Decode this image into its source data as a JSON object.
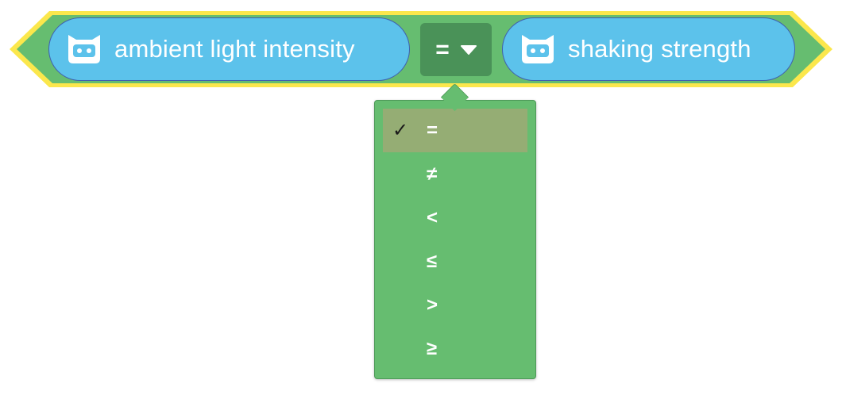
{
  "block": {
    "type": "comparison",
    "left_reporter": {
      "icon": "robot-icon",
      "label": "ambient light intensity"
    },
    "operator": {
      "selected": "=",
      "arrow_icon": "dropdown-arrow-icon"
    },
    "right_reporter": {
      "icon": "robot-icon",
      "label": "shaking strength"
    }
  },
  "dropdown": {
    "check_mark": "✓",
    "items": [
      {
        "label": "=",
        "selected": true
      },
      {
        "label": "≠",
        "selected": false
      },
      {
        "label": "<",
        "selected": false
      },
      {
        "label": "≤",
        "selected": false
      },
      {
        "label": ">",
        "selected": false
      },
      {
        "label": "≥",
        "selected": false
      }
    ]
  },
  "colors": {
    "block_green": "#66bd70",
    "highlight_yellow": "#fbe74c",
    "reporter_blue": "#5cc2eb",
    "operator_dark_green": "#4a9258",
    "selected_item_bg": "#95ad74"
  }
}
